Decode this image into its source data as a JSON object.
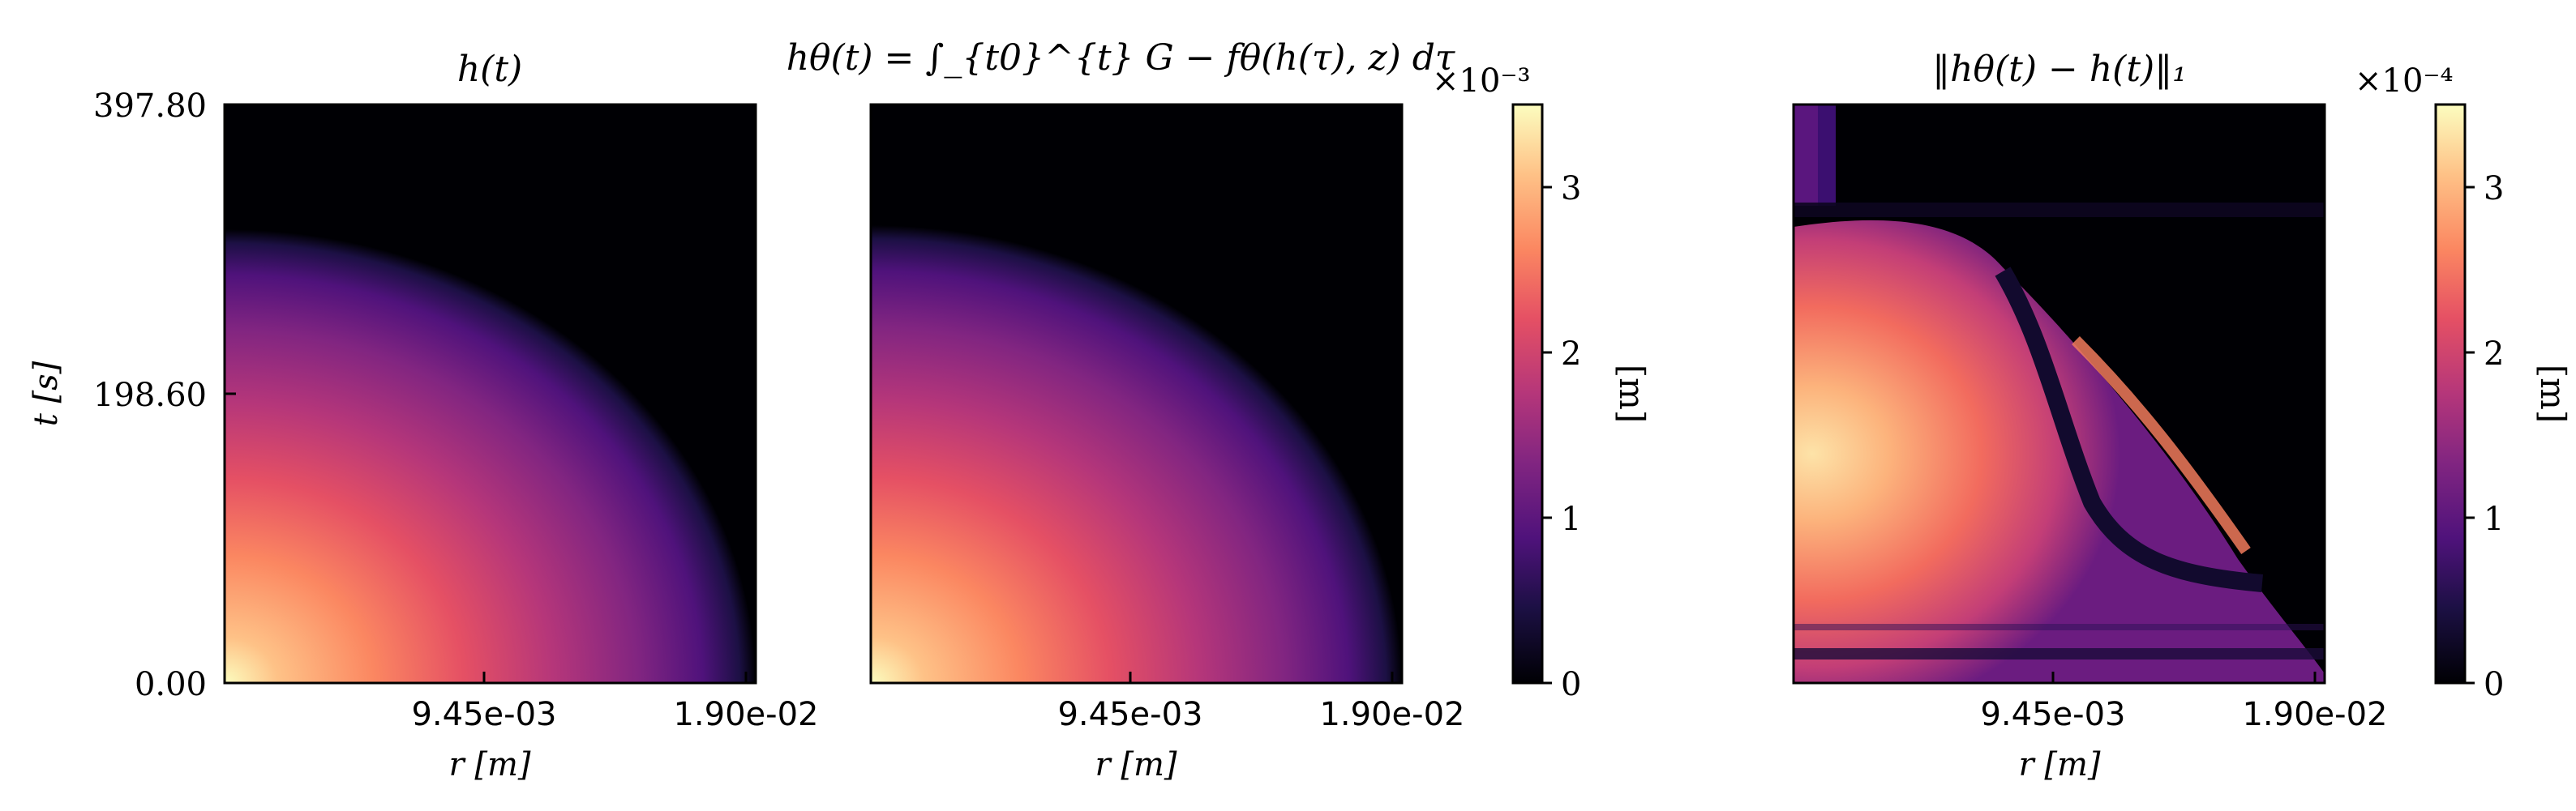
{
  "chart_data": [
    {
      "type": "heatmap",
      "title": "h(t)",
      "xlabel": "r [m]",
      "ylabel": "t [s]",
      "x_ticks": [
        "9.45e-03",
        "1.90e-02"
      ],
      "y_ticks": [
        "0.00",
        "198.60",
        "397.80"
      ],
      "xlim": [
        0,
        0.019
      ],
      "ylim": [
        0,
        397.8
      ],
      "colormap": "magma"
    },
    {
      "type": "heatmap",
      "title": "hθ(t) = ∫_{t0}^{t} G − fθ(h(τ), z) dτ",
      "xlabel": "r [m]",
      "ylabel": "",
      "x_ticks": [
        "9.45e-03",
        "1.90e-02"
      ],
      "xlim": [
        0,
        0.019
      ],
      "ylim": [
        0,
        397.8
      ],
      "colormap": "magma",
      "colorbar": {
        "label": "[m]",
        "multiplier": "×10⁻³",
        "ticks": [
          "0",
          "1",
          "2",
          "3"
        ],
        "range": [
          0,
          3.5
        ]
      }
    },
    {
      "type": "heatmap",
      "title": "‖hθ(t) − h(t)‖₁",
      "xlabel": "r [m]",
      "ylabel": "",
      "x_ticks": [
        "9.45e-03",
        "1.90e-02"
      ],
      "xlim": [
        0,
        0.019
      ],
      "ylim": [
        0,
        397.8
      ],
      "colormap": "magma",
      "colorbar": {
        "label": "[m]",
        "multiplier": "×10⁻⁴",
        "ticks": [
          "0",
          "1",
          "2",
          "3"
        ],
        "range": [
          0,
          3.5
        ]
      }
    }
  ]
}
